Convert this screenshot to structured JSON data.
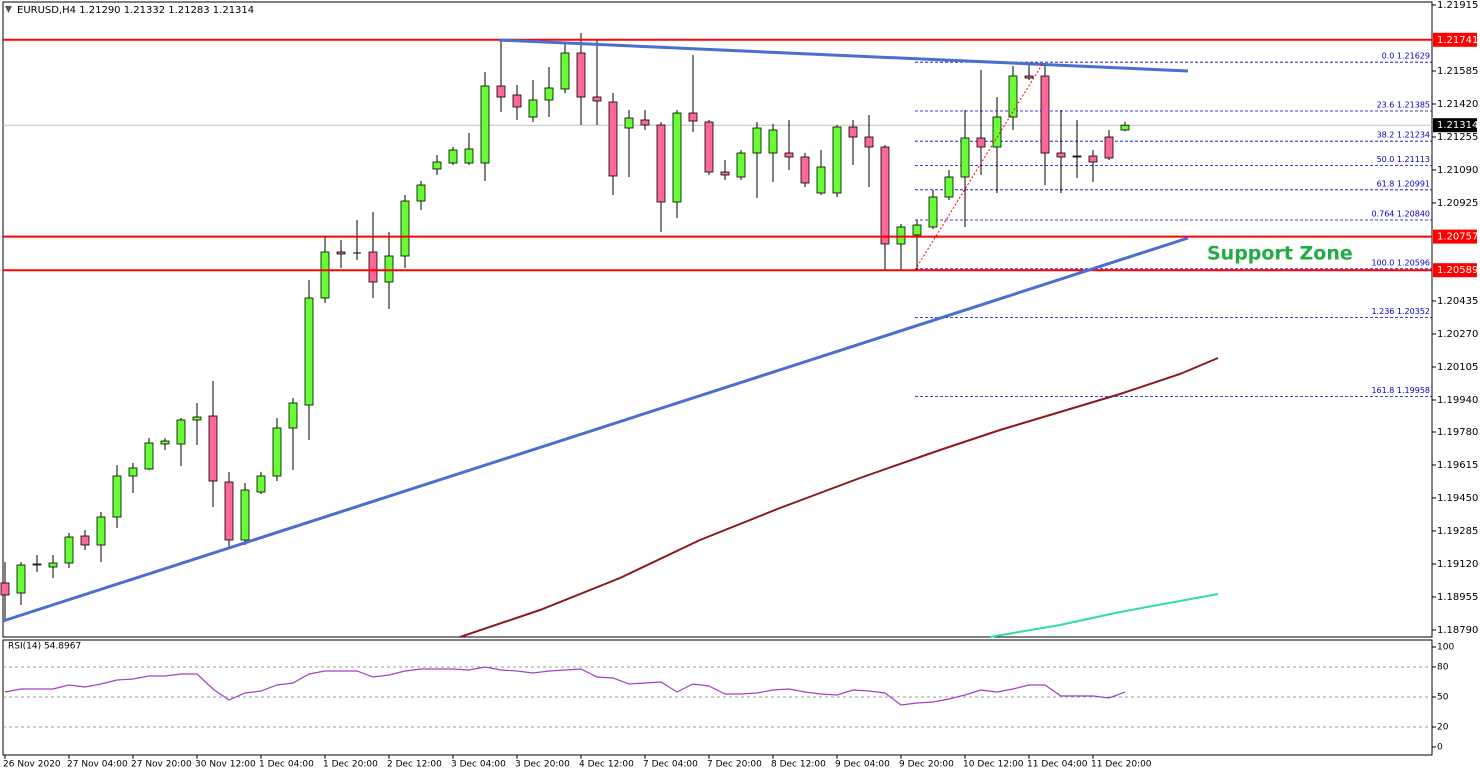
{
  "chart_data": [
    {
      "type": "candlestick",
      "title": "EURUSD,H4  1.21290 1.21332 1.21283 1.21314",
      "categories": [
        "26 Nov 2020",
        null,
        null,
        null,
        "27 Nov 04:00",
        null,
        null,
        null,
        "27 Nov 20:00",
        null,
        null,
        null,
        "30 Nov 12:00",
        null,
        null,
        null,
        "1 Dec 04:00",
        null,
        null,
        null,
        "1 Dec 20:00",
        null,
        null,
        null,
        "2 Dec 12:00",
        null,
        null,
        null,
        "3 Dec 04:00",
        null,
        null,
        null,
        "3 Dec 20:00",
        null,
        null,
        null,
        "4 Dec 12:00",
        null,
        null,
        null,
        "7 Dec 04:00",
        null,
        null,
        null,
        "7 Dec 20:00",
        null,
        null,
        null,
        "8 Dec 12:00",
        null,
        null,
        null,
        "9 Dec 04:00",
        null,
        null,
        null,
        "9 Dec 20:00",
        null,
        null,
        null,
        "10 Dec 12:00",
        null,
        null,
        null,
        "11 Dec 04:00",
        null,
        null,
        null,
        "11 Dec 20:00",
        null,
        null
      ],
      "open": [
        1.19025,
        1.18975,
        1.19115,
        1.19105,
        1.19125,
        1.1926,
        1.19215,
        1.19355,
        1.1956,
        1.19595,
        1.1972,
        1.1972,
        1.1984,
        1.1986,
        1.1953,
        1.1924,
        1.1948,
        1.1956,
        1.198,
        1.19915,
        1.2045,
        1.2068,
        1.2067,
        1.2068,
        1.2053,
        1.2066,
        1.20935,
        1.21095,
        1.21125,
        1.21125,
        1.21125,
        1.2151,
        1.21465,
        1.21355,
        1.2144,
        1.21495,
        1.21675,
        1.21455,
        1.2143,
        1.213,
        1.2134,
        1.21315,
        1.2093,
        1.21375,
        1.2133,
        1.2108,
        1.21055,
        1.21175,
        1.21175,
        1.21175,
        1.21155,
        1.20975,
        1.20975,
        1.21305,
        1.21255,
        1.21205,
        1.2072,
        1.20765,
        1.20805,
        1.20955,
        1.21055,
        1.2125,
        1.21205,
        1.21355,
        1.2156,
        1.2156,
        1.21175,
        1.2116,
        1.2116,
        1.21255,
        1.2129
      ],
      "high": [
        1.1913,
        1.1913,
        1.19165,
        1.19165,
        1.19275,
        1.1929,
        1.1938,
        1.19615,
        1.19625,
        1.1975,
        1.1975,
        1.1985,
        1.19925,
        1.20035,
        1.1958,
        1.19525,
        1.1958,
        1.1985,
        1.1995,
        1.2054,
        1.20755,
        1.2074,
        1.2084,
        1.2088,
        1.2078,
        1.20965,
        1.21035,
        1.21165,
        1.21205,
        1.21275,
        1.2158,
        1.2174,
        1.21515,
        1.2154,
        1.21605,
        1.2173,
        1.21775,
        1.2174,
        1.21475,
        1.2139,
        1.2139,
        1.2133,
        1.2139,
        1.21665,
        1.2134,
        1.2114,
        1.2119,
        1.2133,
        1.2132,
        1.2134,
        1.21175,
        1.2119,
        1.21315,
        1.2134,
        1.21365,
        1.21215,
        1.2082,
        1.2084,
        1.2099,
        1.2109,
        1.2139,
        1.2159,
        1.21455,
        1.2161,
        1.21615,
        1.21625,
        1.2139,
        1.2134,
        1.2119,
        1.2129,
        1.21332
      ],
      "low": [
        1.1884,
        1.18915,
        1.1908,
        1.1905,
        1.191,
        1.1919,
        1.1913,
        1.193,
        1.19475,
        1.1959,
        1.1969,
        1.1961,
        1.19715,
        1.19405,
        1.19205,
        1.19215,
        1.1947,
        1.19535,
        1.1959,
        1.1974,
        1.20425,
        1.206,
        1.2064,
        1.2045,
        1.20395,
        1.206,
        1.2089,
        1.21065,
        1.21115,
        1.21115,
        1.21035,
        1.2138,
        1.2134,
        1.2133,
        1.21355,
        1.21475,
        1.21315,
        1.21315,
        1.20965,
        1.21055,
        1.2129,
        1.2078,
        1.2085,
        1.2128,
        1.21065,
        1.2104,
        1.2104,
        1.2095,
        1.2103,
        1.2109,
        1.21005,
        1.20965,
        1.20955,
        1.21115,
        1.21005,
        1.2059,
        1.2059,
        1.2059,
        1.20795,
        1.2094,
        1.20805,
        1.21065,
        1.20975,
        1.2129,
        1.2154,
        1.21015,
        1.20975,
        1.2105,
        1.2103,
        1.2114,
        1.21283
      ],
      "close": [
        1.18965,
        1.19115,
        1.1912,
        1.19125,
        1.19255,
        1.19215,
        1.19355,
        1.1956,
        1.196,
        1.19725,
        1.19735,
        1.1984,
        1.19855,
        1.19535,
        1.1924,
        1.1949,
        1.1956,
        1.198,
        1.19925,
        1.2045,
        1.2068,
        1.2067,
        1.20675,
        1.2053,
        1.2066,
        1.20935,
        1.21015,
        1.2113,
        1.2119,
        1.21195,
        1.2151,
        1.21455,
        1.21405,
        1.2144,
        1.215,
        1.21675,
        1.21455,
        1.21435,
        1.2106,
        1.2135,
        1.21315,
        1.2093,
        1.21375,
        1.21335,
        1.2108,
        1.21065,
        1.21175,
        1.213,
        1.2129,
        1.21155,
        1.21025,
        1.21105,
        1.21305,
        1.21255,
        1.21205,
        1.2072,
        1.20805,
        1.20815,
        1.20955,
        1.21055,
        1.2125,
        1.21205,
        1.21355,
        1.2156,
        1.2155,
        1.21175,
        1.21155,
        1.21155,
        1.2113,
        1.2115,
        1.21314
      ],
      "up_color": "#66ff33",
      "down_color": "#ff6699",
      "wick_color": "#000000",
      "ylim": [
        1.18755,
        1.2193
      ],
      "yticks": [
        1.21915,
        1.21585,
        {
          "value": 1.2142,
          "label": "1.21420"
        },
        1.21255,
        {
          "value": 1.2109,
          "label": "1.21090"
        },
        1.20925,
        1.20435,
        {
          "value": 1.2027,
          "label": "1.20270"
        },
        1.20105,
        {
          "value": 1.1994,
          "label": "1.19940"
        },
        {
          "value": 1.1978,
          "label": "1.19780"
        },
        1.19615,
        {
          "value": 1.1945,
          "label": "1.19450"
        },
        1.19285,
        {
          "value": 1.1912,
          "label": "1.19120"
        },
        1.18955,
        {
          "value": 1.1879,
          "label": "1.18790"
        }
      ],
      "hlines": [
        {
          "value": 1.21741,
          "color": "#ff0000"
        },
        {
          "value": 1.20757,
          "color": "#ff0000"
        },
        {
          "value": 1.20589,
          "color": "#ff0000"
        }
      ],
      "last_price": 1.21314,
      "fib_levels": [
        {
          "value": 1.21629,
          "label": "0.0 1.21629"
        },
        {
          "value": 1.21385,
          "label": "23.6 1.21385"
        },
        {
          "value": 1.21234,
          "label": "38.2 1.21234"
        },
        {
          "value": 1.21113,
          "label": "50.0 1.21113"
        },
        {
          "value": 1.20991,
          "label": "61.8 1.20991"
        },
        {
          "value": 1.2084,
          "label": "0.764 1.20840"
        },
        {
          "value": 1.20596,
          "label": "100.0 1.20596"
        },
        {
          "value": 1.20352,
          "label": "1.236 1.20352"
        },
        {
          "value": 1.19958,
          "label": "161.8 1.19958"
        }
      ],
      "fib_color": "#0000cc",
      "annotation": "Support Zone"
    },
    {
      "type": "line",
      "title": "RSI(14) 54.8967",
      "values": [
        55,
        58,
        58,
        58,
        62,
        60,
        63,
        67,
        68,
        71,
        71,
        73,
        73,
        58,
        47,
        54,
        56,
        62,
        64,
        73,
        76,
        76,
        76,
        70,
        72,
        76,
        78,
        78,
        78,
        77,
        80,
        77,
        76,
        74,
        76,
        77,
        78,
        70,
        69,
        63,
        64,
        65,
        55,
        63,
        61,
        53,
        53,
        54,
        57,
        58,
        55,
        53,
        52,
        57,
        56,
        54,
        42,
        44,
        45,
        48,
        52,
        57,
        55,
        58,
        62,
        62,
        51,
        51,
        51,
        49,
        54.8967
      ],
      "color": "#a040c8",
      "ylim": [
        0,
        100
      ],
      "yticks": [
        0,
        20,
        50,
        80,
        100
      ],
      "levels": [
        20,
        50,
        80
      ]
    }
  ]
}
